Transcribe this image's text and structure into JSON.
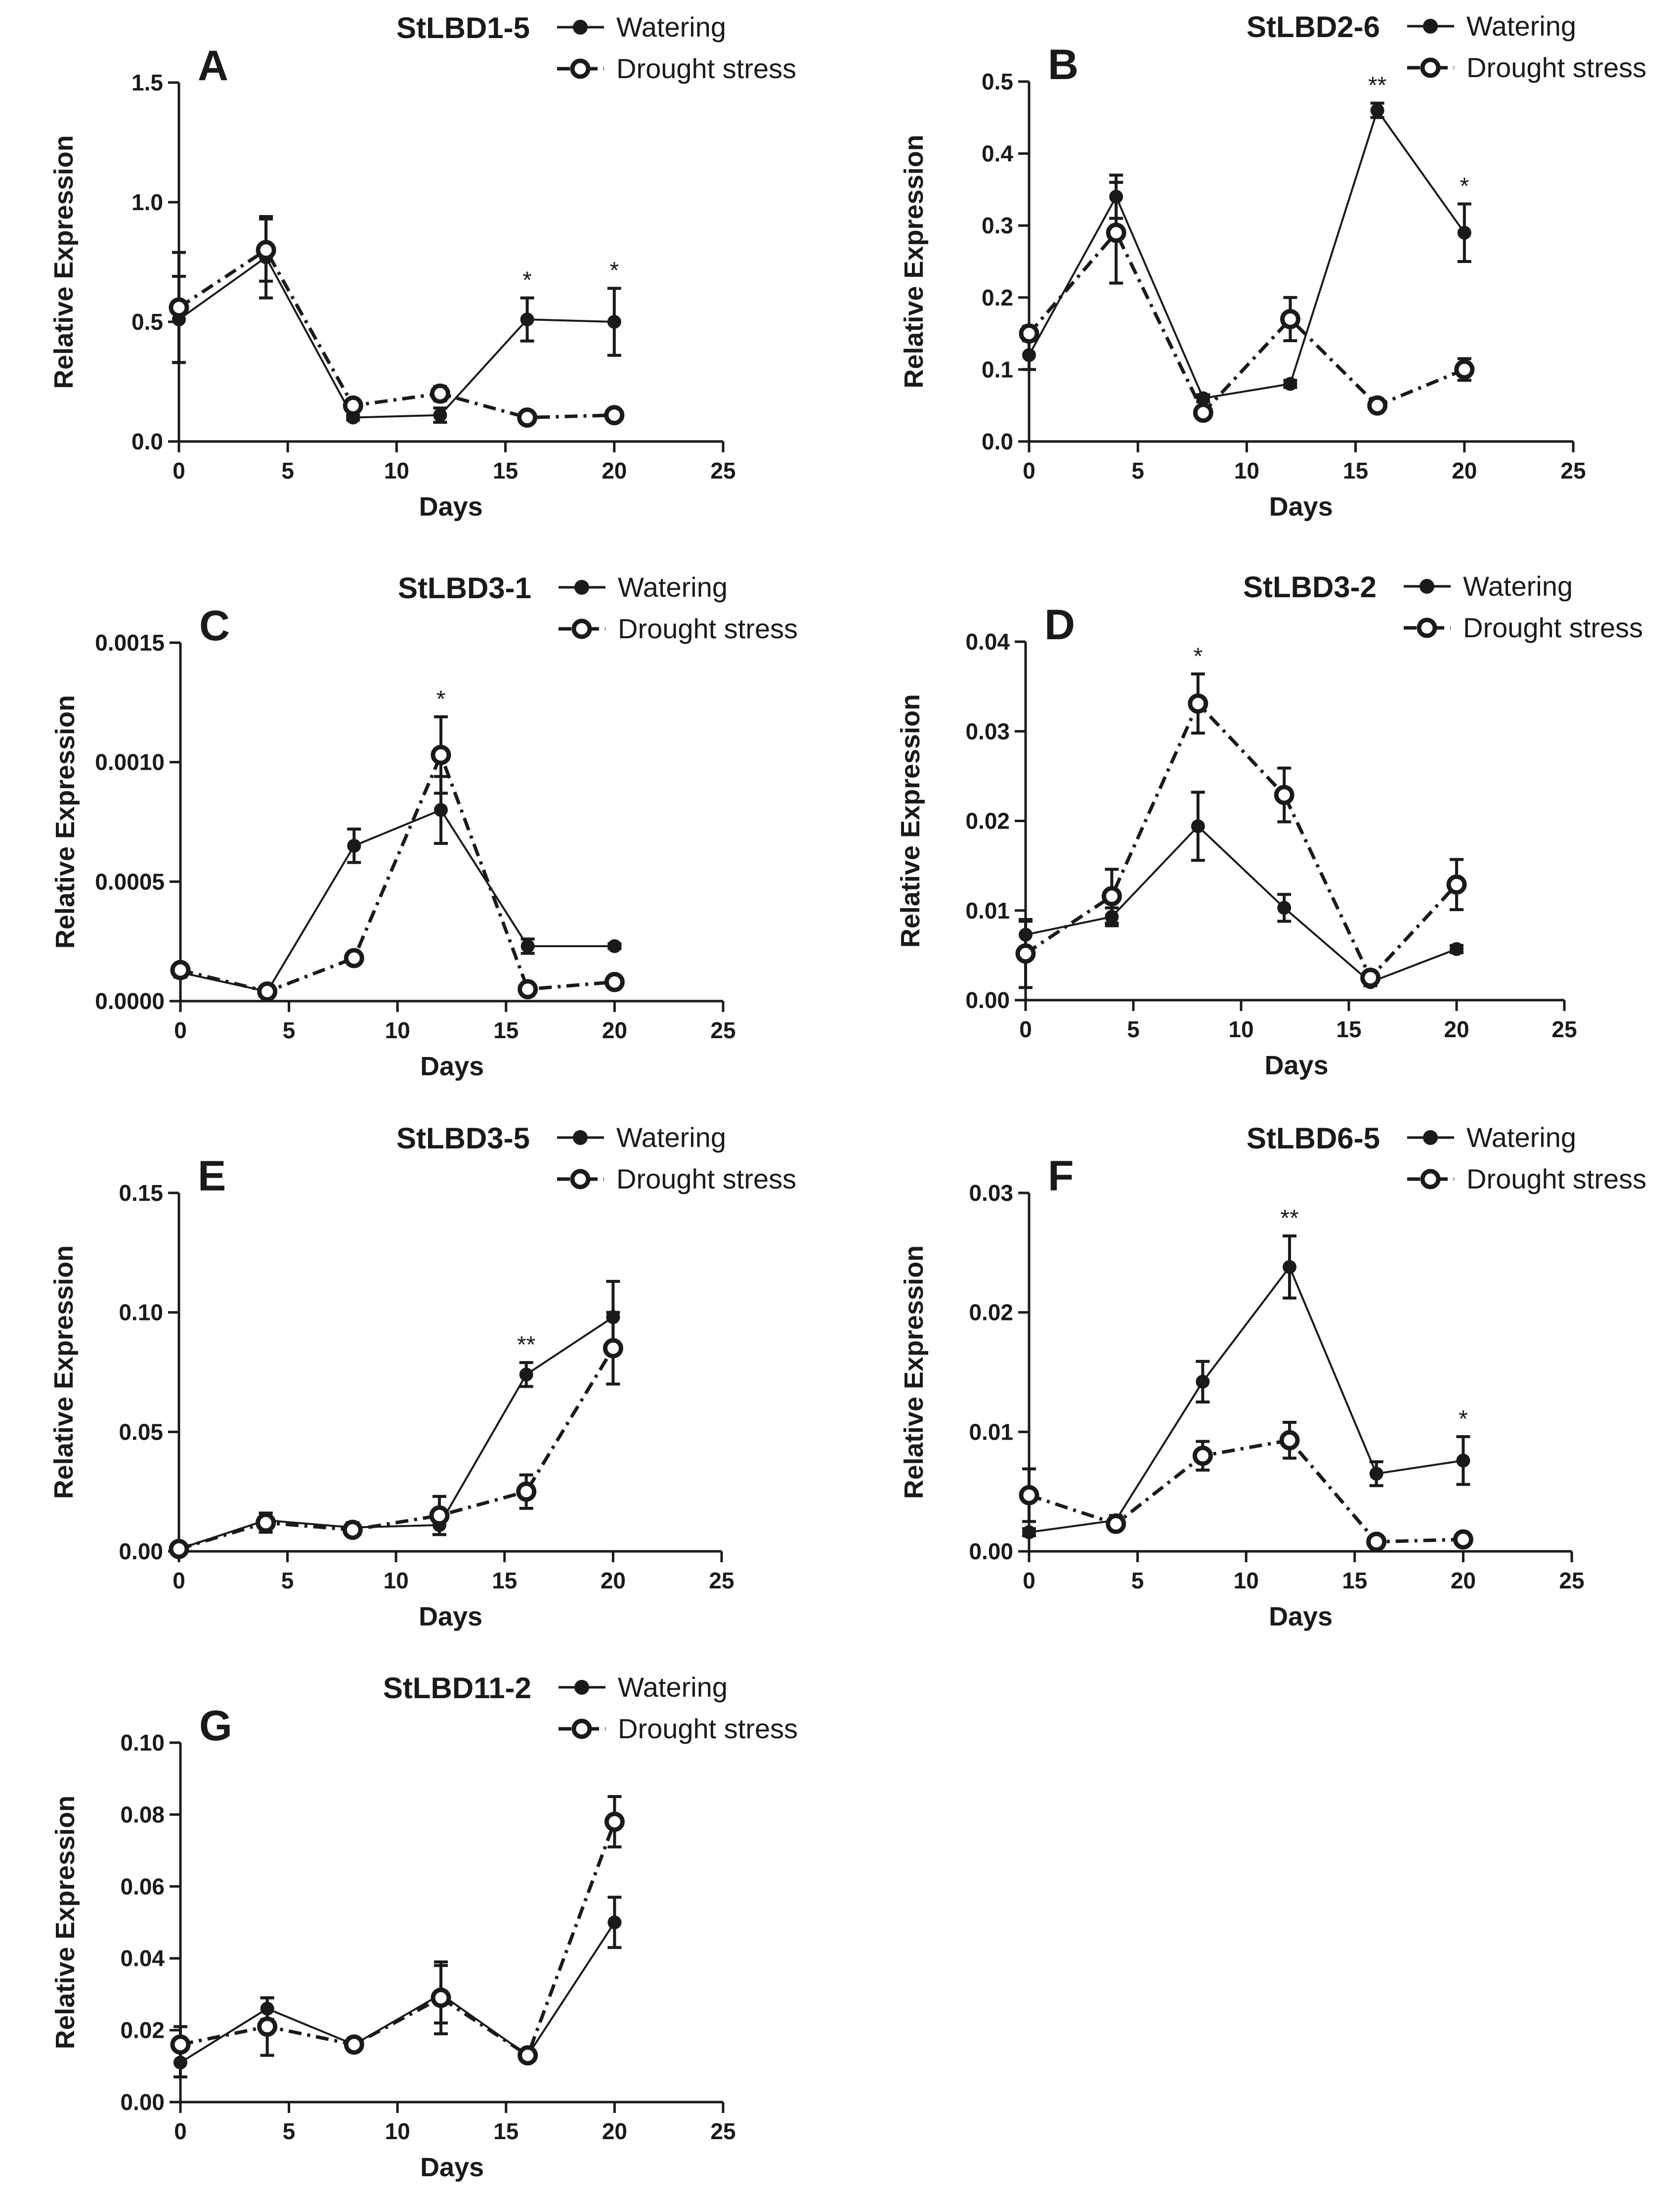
{
  "chart_data": [
    {
      "panel": "A",
      "type": "line",
      "title": "StLBD1-5",
      "xlabel": "Days",
      "ylabel": "Relative Expression",
      "xlim": [
        0,
        25
      ],
      "ylim": [
        0,
        1.5
      ],
      "xticks": [
        "0",
        "5",
        "10",
        "15",
        "20",
        "25"
      ],
      "yticks": [
        "0.0",
        "0.5",
        "1.0",
        "1.5"
      ],
      "x": [
        0,
        4,
        8,
        12,
        16,
        20
      ],
      "series": [
        {
          "name": "Watering",
          "values": [
            0.51,
            0.77,
            0.1,
            0.11,
            0.51,
            0.5
          ],
          "errors": [
            0.18,
            0.17,
            0.01,
            0.03,
            0.09,
            0.14
          ]
        },
        {
          "name": "Drought stress",
          "values": [
            0.56,
            0.8,
            0.15,
            0.2,
            0.1,
            0.11
          ],
          "errors": [
            0.23,
            0.13,
            0.02,
            0.03,
            0.01,
            0.01
          ]
        }
      ],
      "annotations": [
        {
          "x": 16,
          "text": "*"
        },
        {
          "x": 20,
          "text": "*"
        }
      ]
    },
    {
      "panel": "B",
      "type": "line",
      "title": "StLBD2-6",
      "xlabel": "Days",
      "ylabel": "Relative Expression",
      "xlim": [
        0,
        25
      ],
      "ylim": [
        0,
        0.5
      ],
      "xticks": [
        "0",
        "5",
        "10",
        "15",
        "20",
        "25"
      ],
      "yticks": [
        "0.0",
        "0.1",
        "0.2",
        "0.3",
        "0.4",
        "0.5"
      ],
      "x": [
        0,
        4,
        8,
        12,
        16,
        20
      ],
      "series": [
        {
          "name": "Watering",
          "values": [
            0.12,
            0.34,
            0.06,
            0.08,
            0.46,
            0.29
          ],
          "errors": [
            0.02,
            0.03,
            0.005,
            0.005,
            0.01,
            0.04
          ]
        },
        {
          "name": "Drought stress",
          "values": [
            0.15,
            0.29,
            0.04,
            0.17,
            0.05,
            0.1
          ],
          "errors": [
            0.01,
            0.07,
            0.005,
            0.03,
            0.005,
            0.015
          ]
        }
      ],
      "annotations": [
        {
          "x": 16,
          "text": "**"
        },
        {
          "x": 20,
          "text": "*"
        }
      ]
    },
    {
      "panel": "C",
      "type": "line",
      "title": "StLBD3-1",
      "xlabel": "Days",
      "ylabel": "Relative Expression",
      "xlim": [
        0,
        25
      ],
      "ylim": [
        0,
        0.0015
      ],
      "xticks": [
        "0",
        "5",
        "10",
        "15",
        "20",
        "25"
      ],
      "yticks": [
        "0.0000",
        "0.0005",
        "0.0010",
        "0.0015"
      ],
      "x": [
        0,
        4,
        8,
        12,
        16,
        20
      ],
      "series": [
        {
          "name": "Watering",
          "values": [
            0.00012,
            4e-05,
            0.00065,
            0.0008,
            0.00023,
            0.00023
          ],
          "errors": [
            2e-05,
            5e-06,
            7e-05,
            0.00014,
            3e-05,
            1e-05
          ]
        },
        {
          "name": "Drought stress",
          "values": [
            0.00013,
            4e-05,
            0.00018,
            0.00103,
            5e-05,
            8e-05
          ],
          "errors": [
            2e-05,
            5e-06,
            2e-05,
            0.00016,
            5e-06,
            1e-05
          ]
        }
      ],
      "annotations": [
        {
          "x": 12,
          "text": "*"
        }
      ]
    },
    {
      "panel": "D",
      "type": "line",
      "title": "StLBD3-2",
      "xlabel": "Days",
      "ylabel": "Relative Expression",
      "xlim": [
        0,
        25
      ],
      "ylim": [
        0,
        0.04
      ],
      "xticks": [
        "0",
        "5",
        "10",
        "15",
        "20",
        "25"
      ],
      "yticks": [
        "0.00",
        "0.01",
        "0.02",
        "0.03",
        "0.04"
      ],
      "x": [
        0,
        4,
        8,
        12,
        16,
        20
      ],
      "series": [
        {
          "name": "Watering",
          "values": [
            0.0073,
            0.0093,
            0.0194,
            0.0103,
            0.002,
            0.0057
          ],
          "errors": [
            0.0015,
            0.001,
            0.0038,
            0.0015,
            0.0004,
            0.0004
          ]
        },
        {
          "name": "Drought stress",
          "values": [
            0.0052,
            0.0116,
            0.0331,
            0.0229,
            0.0025,
            0.0129
          ],
          "errors": [
            0.0038,
            0.003,
            0.0033,
            0.003,
            0.0006,
            0.0028
          ]
        }
      ],
      "annotations": [
        {
          "x": 8,
          "text": "*"
        }
      ]
    },
    {
      "panel": "E",
      "type": "line",
      "title": "StLBD3-5",
      "xlabel": "Days",
      "ylabel": "Relative Expression",
      "xlim": [
        0,
        25
      ],
      "ylim": [
        0,
        0.15
      ],
      "xticks": [
        "0",
        "5",
        "10",
        "15",
        "20",
        "25"
      ],
      "yticks": [
        "0.00",
        "0.05",
        "0.10",
        "0.15"
      ],
      "x": [
        0,
        4,
        8,
        12,
        16,
        20
      ],
      "series": [
        {
          "name": "Watering",
          "values": [
            0.001,
            0.013,
            0.01,
            0.011,
            0.074,
            0.098
          ],
          "errors": [
            0.0005,
            0.003,
            0.002,
            0.004,
            0.005,
            0.015
          ]
        },
        {
          "name": "Drought stress",
          "values": [
            0.001,
            0.012,
            0.009,
            0.015,
            0.025,
            0.085
          ],
          "errors": [
            0.0005,
            0.004,
            0.002,
            0.008,
            0.007,
            0.015
          ]
        }
      ],
      "annotations": [
        {
          "x": 16,
          "text": "**"
        }
      ]
    },
    {
      "panel": "F",
      "type": "line",
      "title": "StLBD6-5",
      "xlabel": "Days",
      "ylabel": "Relative Expression",
      "xlim": [
        0,
        25
      ],
      "ylim": [
        0,
        0.03
      ],
      "xticks": [
        "0",
        "5",
        "10",
        "15",
        "20",
        "25"
      ],
      "yticks": [
        "0.00",
        "0.01",
        "0.02",
        "0.03"
      ],
      "x": [
        0,
        4,
        8,
        12,
        16,
        20
      ],
      "series": [
        {
          "name": "Watering",
          "values": [
            0.0016,
            0.0026,
            0.0142,
            0.0238,
            0.0065,
            0.0076
          ],
          "errors": [
            0.0003,
            0.0004,
            0.0017,
            0.0026,
            0.001,
            0.002
          ]
        },
        {
          "name": "Drought stress",
          "values": [
            0.0047,
            0.0023,
            0.008,
            0.0093,
            0.0008,
            0.001
          ],
          "errors": [
            0.0022,
            0.0004,
            0.0012,
            0.0015,
            0.0002,
            0.0005
          ]
        }
      ],
      "annotations": [
        {
          "x": 12,
          "text": "**"
        },
        {
          "x": 20,
          "text": "*"
        }
      ]
    },
    {
      "panel": "G",
      "type": "line",
      "title": "StLBD11-2",
      "xlabel": "Days",
      "ylabel": "Relative Expression",
      "xlim": [
        0,
        25
      ],
      "ylim": [
        0,
        0.1
      ],
      "xticks": [
        "0",
        "5",
        "10",
        "15",
        "20",
        "25"
      ],
      "yticks": [
        "0.00",
        "0.02",
        "0.04",
        "0.06",
        "0.08",
        "0.10"
      ],
      "x": [
        0,
        4,
        8,
        12,
        16,
        20
      ],
      "series": [
        {
          "name": "Watering",
          "values": [
            0.011,
            0.026,
            0.016,
            0.03,
            0.013,
            0.05
          ],
          "errors": [
            0.004,
            0.003,
            0.001,
            0.008,
            0.001,
            0.007
          ]
        },
        {
          "name": "Drought stress",
          "values": [
            0.016,
            0.021,
            0.016,
            0.029,
            0.013,
            0.078
          ],
          "errors": [
            0.005,
            0.008,
            0.001,
            0.01,
            0.001,
            0.007
          ]
        }
      ],
      "annotations": []
    }
  ]
}
